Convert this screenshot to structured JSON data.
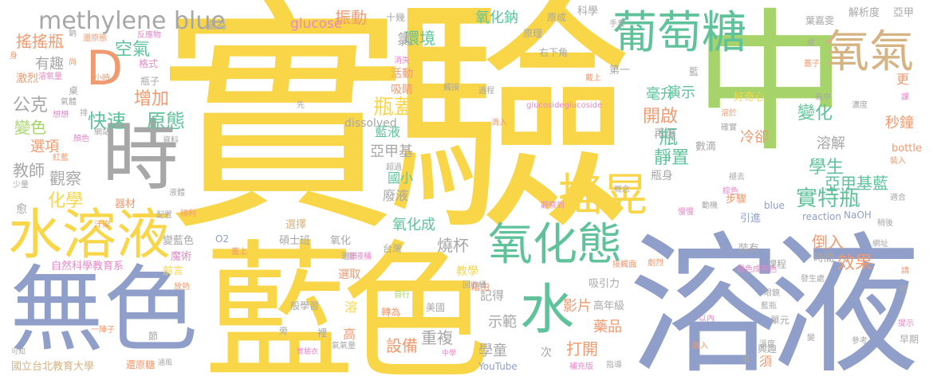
{
  "title": "實驗 word cloud",
  "colors": {
    "yellow": "#f9d648",
    "lavender": "#8f9fc9",
    "green": "#a6d46a",
    "teal": "#5fc29b",
    "orange": "#f09a6f",
    "gray": "#a7a7a7",
    "pink": "#e58ac8",
    "brown": "#d6b383"
  },
  "words": [
    {
      "text": "實驗",
      "color": "yellow"
    },
    {
      "text": "中",
      "color": "green"
    },
    {
      "text": "溶液",
      "color": "lavender"
    },
    {
      "text": "藍色",
      "color": "yellow"
    },
    {
      "text": "無色",
      "color": "lavender"
    },
    {
      "text": "葡萄糖",
      "color": "teal"
    },
    {
      "text": "水溶液",
      "color": "yellow"
    },
    {
      "text": "氧化態",
      "color": "teal"
    },
    {
      "text": "時",
      "color": "gray"
    },
    {
      "text": "搖晃",
      "color": "yellow"
    },
    {
      "text": "氧氣",
      "color": "brown"
    },
    {
      "text": "D",
      "color": "orange"
    },
    {
      "text": "水",
      "color": "teal"
    },
    {
      "text": "methylene blue",
      "color": "gray"
    },
    {
      "text": "glucose",
      "color": "pink"
    },
    {
      "text": "實特瓶",
      "color": "teal"
    },
    {
      "text": "亞甲基藍",
      "color": "teal"
    },
    {
      "text": "瓶蓋",
      "color": "yellow"
    },
    {
      "text": "搖搖瓶",
      "color": "orange"
    },
    {
      "text": "空氣",
      "color": "teal"
    },
    {
      "text": "原態",
      "color": "teal"
    },
    {
      "text": "快速",
      "color": "teal"
    },
    {
      "text": "公克",
      "color": "gray"
    },
    {
      "text": "化學",
      "color": "yellow"
    },
    {
      "text": "觀察",
      "color": "gray"
    },
    {
      "text": "教師",
      "color": "gray"
    },
    {
      "text": "增加",
      "color": "orange"
    },
    {
      "text": "學生",
      "color": "teal"
    },
    {
      "text": "變化",
      "color": "teal"
    },
    {
      "text": "開啟",
      "color": "orange"
    },
    {
      "text": "靜置",
      "color": "teal"
    },
    {
      "text": "效果",
      "color": "orange"
    },
    {
      "text": "倒入",
      "color": "orange"
    },
    {
      "text": "設備",
      "color": "orange"
    },
    {
      "text": "重複",
      "color": "gray"
    },
    {
      "text": "打開",
      "color": "orange"
    },
    {
      "text": "示範",
      "color": "gray"
    },
    {
      "text": "燒杯",
      "color": "gray"
    },
    {
      "text": "影片",
      "color": "orange"
    },
    {
      "text": "學童",
      "color": "gray"
    },
    {
      "text": "藥品",
      "color": "orange"
    },
    {
      "text": "有趣",
      "color": "gray"
    },
    {
      "text": "環境",
      "color": "teal"
    },
    {
      "text": "振動",
      "color": "orange"
    },
    {
      "text": "氧化鈉",
      "color": "teal"
    },
    {
      "text": "溶解",
      "color": "gray"
    },
    {
      "text": "冷卻",
      "color": "orange"
    },
    {
      "text": "瓶",
      "color": "teal"
    },
    {
      "text": "演示",
      "color": "teal"
    },
    {
      "text": "毫升",
      "color": "teal"
    },
    {
      "text": "秒鐘",
      "color": "orange"
    },
    {
      "text": "氧化成",
      "color": "teal"
    },
    {
      "text": "國立台北教育大學",
      "color": "brown"
    },
    {
      "text": "自然科學教育系",
      "color": "pink"
    },
    {
      "text": "reaction",
      "color": "lavender"
    },
    {
      "text": "NaOH",
      "color": "lavender"
    },
    {
      "text": "dissolved",
      "color": "gray"
    },
    {
      "text": "YouTube",
      "color": "lavender"
    },
    {
      "text": "bottle",
      "color": "orange"
    },
    {
      "text": "O2",
      "color": "lavender"
    },
    {
      "text": "blue",
      "color": "lavender"
    },
    {
      "text": "glucosideglucoside",
      "color": "pink"
    },
    {
      "text": "亞甲基",
      "color": "gray"
    },
    {
      "text": "藍液",
      "color": "teal"
    },
    {
      "text": "廢液",
      "color": "gray"
    },
    {
      "text": "國小",
      "color": "teal"
    },
    {
      "text": "選擇",
      "color": "brown"
    },
    {
      "text": "碩士班",
      "color": "gray"
    },
    {
      "text": "變藍色",
      "color": "gray"
    },
    {
      "text": "魔術",
      "color": "pink"
    },
    {
      "text": "前言",
      "color": "yellow"
    },
    {
      "text": "選取",
      "color": "orange"
    },
    {
      "text": "時間",
      "color": "gray"
    },
    {
      "text": "再度",
      "color": "gray"
    },
    {
      "text": "瓶身",
      "color": "gray"
    },
    {
      "text": "步驟",
      "color": "orange"
    },
    {
      "text": "引進",
      "color": "lavender"
    },
    {
      "text": "數滴",
      "color": "gray"
    },
    {
      "text": "好奇心",
      "color": "yellow"
    },
    {
      "text": "裝有",
      "color": "gray"
    },
    {
      "text": "課程",
      "color": "gray"
    },
    {
      "text": "興趣",
      "color": "gray"
    },
    {
      "text": "單元",
      "color": "gray"
    },
    {
      "text": "早期",
      "color": "gray"
    },
    {
      "text": "記得",
      "color": "gray"
    },
    {
      "text": "教學",
      "color": "yellow"
    },
    {
      "text": "吸引力",
      "color": "gray"
    },
    {
      "text": "高年級",
      "color": "gray"
    },
    {
      "text": "變色",
      "color": "green"
    },
    {
      "text": "選項",
      "color": "orange"
    },
    {
      "text": "科學",
      "color": "gray"
    },
    {
      "text": "解析度",
      "color": "gray"
    },
    {
      "text": "葉嘉雯",
      "color": "gray"
    },
    {
      "text": "亞甲",
      "color": "gray"
    },
    {
      "text": "原理",
      "color": "gray"
    },
    {
      "text": "原成",
      "color": "gray"
    },
    {
      "text": "十幾",
      "color": "gray"
    },
    {
      "text": "變為",
      "color": "gray"
    },
    {
      "text": "氯",
      "color": "gray"
    },
    {
      "text": "活動",
      "color": "orange"
    },
    {
      "text": "吸睛",
      "color": "orange"
    },
    {
      "text": "右下角",
      "color": "gray"
    },
    {
      "text": "第一",
      "color": "gray"
    },
    {
      "text": "格式",
      "color": "pink"
    },
    {
      "text": "瓶子",
      "color": "gray"
    },
    {
      "text": "還原糖",
      "color": "orange"
    },
    {
      "text": "須",
      "color": "orange"
    },
    {
      "text": "更",
      "color": "orange"
    },
    {
      "text": "高",
      "color": "orange"
    },
    {
      "text": "溶",
      "color": "yellow"
    },
    {
      "text": "次",
      "color": "gray"
    },
    {
      "text": "藍",
      "color": "gray"
    },
    {
      "text": "愈",
      "color": "gray"
    },
    {
      "text": "器材",
      "color": "orange"
    },
    {
      "text": "中學",
      "color": "pink"
    },
    {
      "text": "實驗衣",
      "color": "pink"
    },
    {
      "text": "一陣子",
      "color": "orange"
    },
    {
      "text": "通風",
      "color": "gray"
    },
    {
      "text": "可知",
      "color": "gray"
    },
    {
      "text": "節",
      "color": "gray"
    },
    {
      "text": "裡",
      "color": "gray"
    },
    {
      "text": "旁",
      "color": "gray"
    },
    {
      "text": "台灣",
      "color": "gray"
    },
    {
      "text": "美國",
      "color": "gray"
    },
    {
      "text": "轉為",
      "color": "orange"
    },
    {
      "text": "藉由",
      "color": "orange"
    },
    {
      "text": "般學習",
      "color": "gray"
    },
    {
      "text": "氧化",
      "color": "gray"
    },
    {
      "text": "蓋上",
      "color": "orange"
    },
    {
      "text": "還原",
      "color": "gray"
    },
    {
      "text": "放熱",
      "color": "orange"
    },
    {
      "text": "氣氣量",
      "color": "gray"
    },
    {
      "text": "自行",
      "color": "green"
    },
    {
      "text": "回收桶",
      "color": "gray"
    },
    {
      "text": "接觸面",
      "color": "orange"
    },
    {
      "text": "退色成無色",
      "color": "pink"
    },
    {
      "text": "發生處",
      "color": "gray"
    },
    {
      "text": "劇烈",
      "color": "orange"
    },
    {
      "text": "稍後",
      "color": "gray"
    },
    {
      "text": "網址",
      "color": "gray"
    },
    {
      "text": "適合",
      "color": "gray"
    },
    {
      "text": "裝入",
      "color": "orange"
    },
    {
      "text": "濃度",
      "color": "gray"
    },
    {
      "text": "高中",
      "color": "gray"
    },
    {
      "text": "確實",
      "color": "gray"
    },
    {
      "text": "溶於",
      "color": "orange"
    },
    {
      "text": "褪去",
      "color": "gray"
    },
    {
      "text": "棕色",
      "color": "pink"
    },
    {
      "text": "動機",
      "color": "gray"
    },
    {
      "text": "慢慢",
      "color": "pink"
    },
    {
      "text": "滴入",
      "color": "orange"
    },
    {
      "text": "概念",
      "color": "gray"
    },
    {
      "text": "觀察到",
      "color": "pink"
    },
    {
      "text": "超過",
      "color": "gray"
    },
    {
      "text": "液體",
      "color": "gray"
    },
    {
      "text": "順利",
      "color": "orange"
    },
    {
      "text": "汗染",
      "color": "orange"
    },
    {
      "text": "配置",
      "color": "gray"
    },
    {
      "text": "廢液桶",
      "color": "pink"
    },
    {
      "text": "少量",
      "color": "gray"
    },
    {
      "text": "紅藍",
      "color": "orange"
    },
    {
      "text": "顏色",
      "color": "pink"
    },
    {
      "text": "網站",
      "color": "gray"
    },
    {
      "text": "資料",
      "color": "gray"
    },
    {
      "text": "排",
      "color": "gray"
    },
    {
      "text": "想想",
      "color": "pink"
    },
    {
      "text": "氣體",
      "color": "gray"
    },
    {
      "text": "桌",
      "color": "gray"
    },
    {
      "text": "溶氧量",
      "color": "pink"
    },
    {
      "text": "激烈",
      "color": "orange"
    },
    {
      "text": "尚",
      "color": "orange"
    },
    {
      "text": "身",
      "color": "orange"
    },
    {
      "text": "鈉",
      "color": "gray"
    },
    {
      "text": "還原態",
      "color": "orange"
    },
    {
      "text": "反應物",
      "color": "pink"
    },
    {
      "text": "消失",
      "color": "pink"
    },
    {
      "text": "小時",
      "color": "orange"
    },
    {
      "text": "觸摸",
      "color": "gray"
    },
    {
      "text": "過程",
      "color": "gray"
    },
    {
      "text": "戴上",
      "color": "orange"
    },
    {
      "text": "手套",
      "color": "gray"
    },
    {
      "text": "成",
      "color": "gray"
    },
    {
      "text": "蓋子",
      "color": "orange"
    },
    {
      "text": "課",
      "color": "pink"
    },
    {
      "text": "請",
      "color": "orange"
    },
    {
      "text": "短",
      "color": "gray"
    },
    {
      "text": "提示",
      "color": "pink"
    },
    {
      "text": "參考",
      "color": "gray"
    },
    {
      "text": "溫度",
      "color": "gray"
    },
    {
      "text": "變",
      "color": "gray"
    },
    {
      "text": "融入",
      "color": "orange"
    },
    {
      "text": "藍瓶",
      "color": "gray"
    },
    {
      "text": "眼鏡",
      "color": "gray"
    },
    {
      "text": "需",
      "color": "gray"
    },
    {
      "text": "指導",
      "color": "gray"
    },
    {
      "text": "補充版",
      "color": "pink"
    },
    {
      "text": "以內",
      "color": "pink"
    },
    {
      "text": "先",
      "color": "gray"
    }
  ]
}
